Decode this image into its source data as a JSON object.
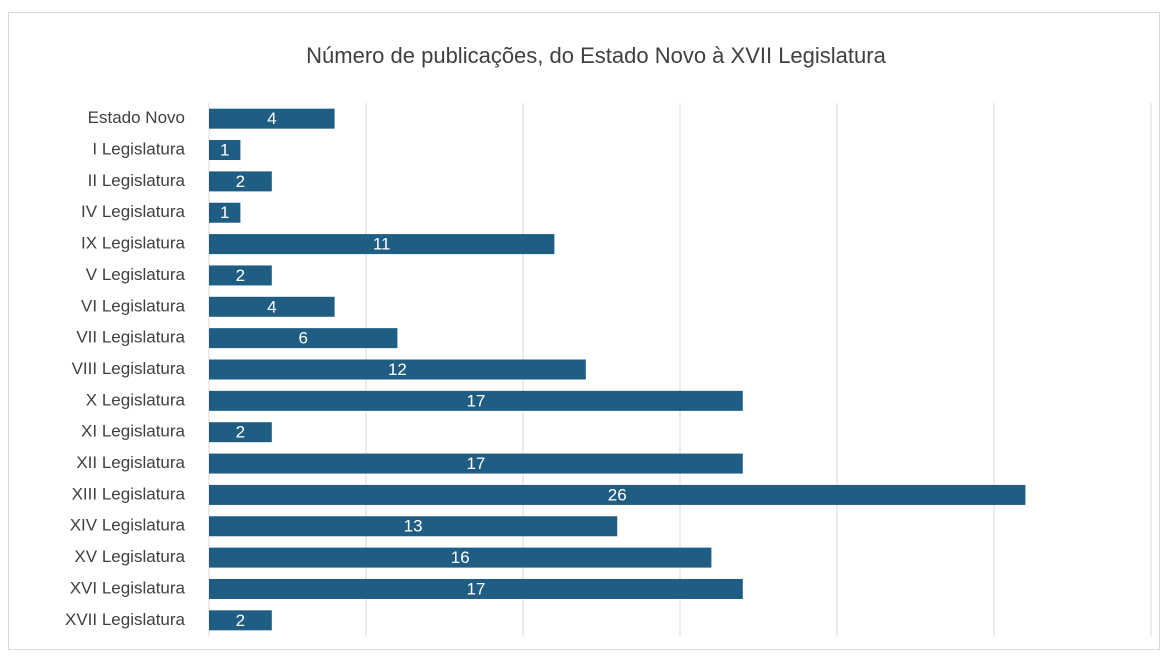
{
  "chart_data": {
    "type": "bar",
    "orientation": "horizontal",
    "title": "Número de publicações, do Estado Novo à XVII Legislatura",
    "categories": [
      "Estado Novo",
      "I Legislatura",
      "II Legislatura",
      "IV Legislatura",
      "IX Legislatura",
      "V Legislatura",
      "VI Legislatura",
      "VII Legislatura",
      "VIII Legislatura",
      "X Legislatura",
      "XI Legislatura",
      "XII Legislatura",
      "XIII Legislatura",
      "XIV Legislatura",
      "XV Legislatura",
      "XVI Legislatura",
      "XVII Legislatura"
    ],
    "values": [
      4,
      1,
      2,
      1,
      11,
      2,
      4,
      6,
      12,
      17,
      2,
      17,
      26,
      13,
      16,
      17,
      2
    ],
    "color": "#1f5d82",
    "xlim": [
      0,
      30
    ],
    "xticks": [
      0,
      5,
      10,
      15,
      20,
      25,
      30
    ],
    "grid": true
  }
}
